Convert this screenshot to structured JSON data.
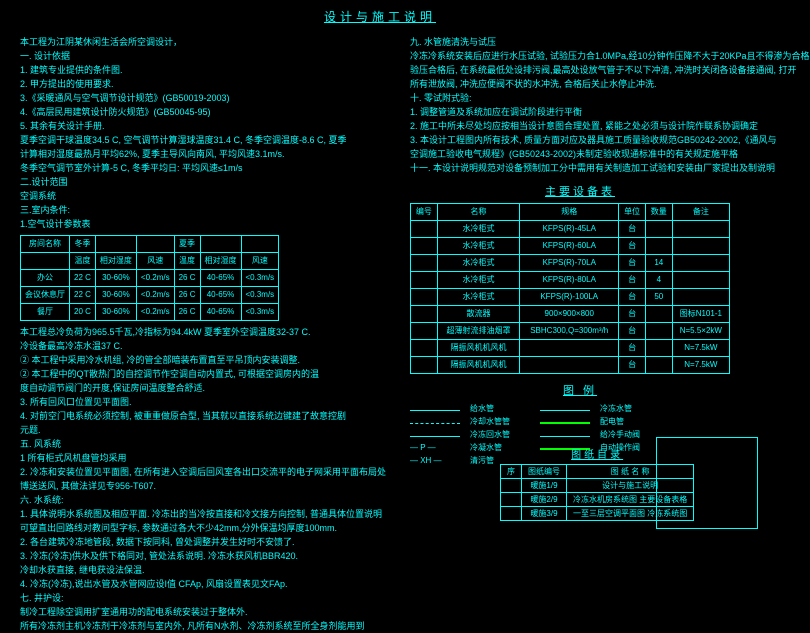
{
  "page_title": "设计与施工说明",
  "left": {
    "intro": "本工程为江阴某休闲生活会所空调设计，",
    "s1_title": "一. 设计依据",
    "s1_items": [
      "1. 建筑专业提供的条件图.",
      "2. 甲方提出的使用要求.",
      "3.《采暖通风与空气调节设计规范》(GB50019-2003)",
      "4.《高层民用建筑设计防火规范》(GB50045-95)",
      "5. 其余有关设计手册.",
      "夏季空调干球温度34.5 C, 空气调节计算湿球温度31.4 C, 冬季空调温度-8.6 C, 夏季",
      "计算相对湿度最热月平均62%, 夏季主导风向南风, 平均风速3.1m/s.",
      "冬季空气调节室外计算-5 C, 冬季平均日: 平均风速≤1m/s"
    ],
    "s2_title": "二.设计范围",
    "s2_line": "空调系统",
    "s3_title": "三.室内条件:",
    "s3_line": "1.空气设计参数表",
    "table1": {
      "headers": [
        "房间名称",
        "冬季",
        "",
        "",
        "夏季",
        "",
        ""
      ],
      "sub": [
        "",
        "温度",
        "相对湿度",
        "风速",
        "温度",
        "相对湿度",
        "风速"
      ],
      "rows": [
        [
          "办公",
          "22 C",
          "30-60%",
          "<0.2m/s",
          "26 C",
          "40-65%",
          "<0.3m/s"
        ],
        [
          "会议休息厅",
          "22 C",
          "30-60%",
          "<0.2m/s",
          "26 C",
          "40-65%",
          "<0.3m/s"
        ],
        [
          "餐厅",
          "20 C",
          "30-60%",
          "<0.2m/s",
          "26 C",
          "40-65%",
          "<0.3m/s"
        ]
      ]
    },
    "after_t1": [
      "本工程总冷负荷为965.5千瓦,冷指标为94.4kW 夏季室外空调温度32-37 C.",
      "冷设备最高冷冻水温37 C.",
      "② 本工程中采用冷水机组, 冷的管全部暗装布置直至平吊顶内安装调整.",
      "② 本工程中的QT散热门的自控调节作空调自动内置式, 可根据空调房内的温",
      "度自动调节阀门的开度,保证房间温度整合舒适.",
      "3. 所有回风口位置见平面图.",
      "4. 对前空门电系统必须控制, 被重重做原合型, 当其就以直接系统边键建了故意控剧",
      "元题.",
      "五. 风系统",
      "1 所有柜式风机盘管均采用",
      "2. 冷冻和安装位置见平面图, 在所有进入空调后回风室各出口交流平的电子网采用平面布局处",
      "博送送风, 其做法详见专956-T607.",
      "六. 水系统:",
      "1. 具体说明水系统图及相应平面. 冷冻出的当冷按直接和冷文接方向控制, 普通具体位置说明",
      "可望直出回路线对教问型字标, 参数通过各大不少42mm,分外保温均厚度100mm.",
      "2. 各台建筑冷冻地管段, 数据下按同科, 曾处调整并发生好时不安馈了.",
      "3. 冷冻(冷冻)供水及供下格同对, 管处法系说明. 冷冻水获风机BBR420.",
      "冷却水获直接, 继电获设法保温.",
      "4. 冷冻(冷冻),说出水管及水管网应设I值 CFAp, 风扇设置表见文FAp.",
      "七. 井护设:",
      "制冷工程除空调用扩室通用功的配电系统安装过于整体外.",
      "所有冷冻剂主机冷冻剂干冷冻剂与室内外, 凡所有N水剂、冷冻剂系统至所全身剂能用到"
    ]
  },
  "right": {
    "s9_title": "九. 水管施清洗与试压",
    "s9_items": [
      "冷冻冷系统安装后应进行水压试验, 试验压力合1.0MPa,经10分钟作压降不大于20KPa且不得渗为合格",
      "验压合格后, 在系统最低处设排污阀,最高处设放气管于不以下冲清, 冲洗时关闭各设备接通阀, 打开",
      "所有泄放阀, 冲洗应便阀不状的水冲洗, 合格后关止水停止冲洗.",
      "十. 零试附式验:",
      "1. 调整管道及系统加应在调试阶段进行平衡",
      "2. 施工中所未尽处均应按相当设计意图合理处置, 紧能之处必须与设计院作联系协调确定",
      "3. 本设计工程图内所有技术, 质量方面对应及器具施工质量验收规范GB50242-2002,《通风与",
      "空调施工验收电气规程》(GB50243-2002)未制定验收现通标准中的有关规定施平格",
      "十一. 本设计说明规范对设备预制加工分中需用有关制造加工试验和安装由厂家提出及制说明"
    ],
    "equip_title": "主要设备表",
    "table2": {
      "headers": [
        "编号",
        "名称",
        "规格",
        "单位",
        "数量",
        "备注"
      ],
      "rows": [
        [
          "",
          "水冷柜式",
          "KFPS(R)-45LA",
          "台",
          "",
          ""
        ],
        [
          "",
          "水冷柜式",
          "KFPS(R)-60LA",
          "台",
          "",
          ""
        ],
        [
          "",
          "水冷柜式",
          "KFPS(R)-70LA",
          "台",
          "14",
          ""
        ],
        [
          "",
          "水冷柜式",
          "KFPS(R)-80LA",
          "台",
          "4",
          ""
        ],
        [
          "",
          "水冷柜式",
          "KFPS(R)-100LA",
          "台",
          "50",
          ""
        ],
        [
          "",
          "散流器",
          "900×900×800",
          "台",
          "",
          "图标N101-1"
        ],
        [
          "",
          "超薄射流排油烟罩",
          "SBHC300,Q=300m³/h",
          "台",
          "",
          "N=5.5×2kW"
        ],
        [
          "",
          "隔振风机机风机",
          "",
          "台",
          "",
          "N=7.5kW"
        ],
        [
          "",
          "隔振风机机风机",
          "",
          "台",
          "",
          "N=7.5kW"
        ]
      ]
    },
    "legend_title": "图 例",
    "legend": [
      {
        "sym": "solid",
        "lab": "给水管",
        "sym2": "solid",
        "lab2": "冷冻水管"
      },
      {
        "sym": "dash",
        "lab": "冷却水管管",
        "sym2": "green",
        "lab2": "配电管"
      },
      {
        "sym": "solid",
        "lab": "冷冻回水管",
        "sym2": "solid",
        "lab2": "给冷手动阀"
      },
      {
        "sym": "P",
        "lab": "冷凝水管",
        "sym2": "green",
        "lab2": "自动操作阀"
      },
      {
        "sym": "XH",
        "lab": "清污管",
        "sym2": "",
        "lab2": ""
      }
    ],
    "catalog_title": "图纸目录",
    "table3": {
      "headers": [
        "序",
        "图纸编号",
        "图 纸 名 称"
      ],
      "rows": [
        [
          "",
          "暖施1/9",
          "设计与施工说明"
        ],
        [
          "",
          "暖施2/9",
          "冷冻水机房系统图 主要设备表格"
        ],
        [
          "",
          "暖施3/9",
          "一至三层空调平面图   冷冻系统图"
        ]
      ]
    }
  }
}
